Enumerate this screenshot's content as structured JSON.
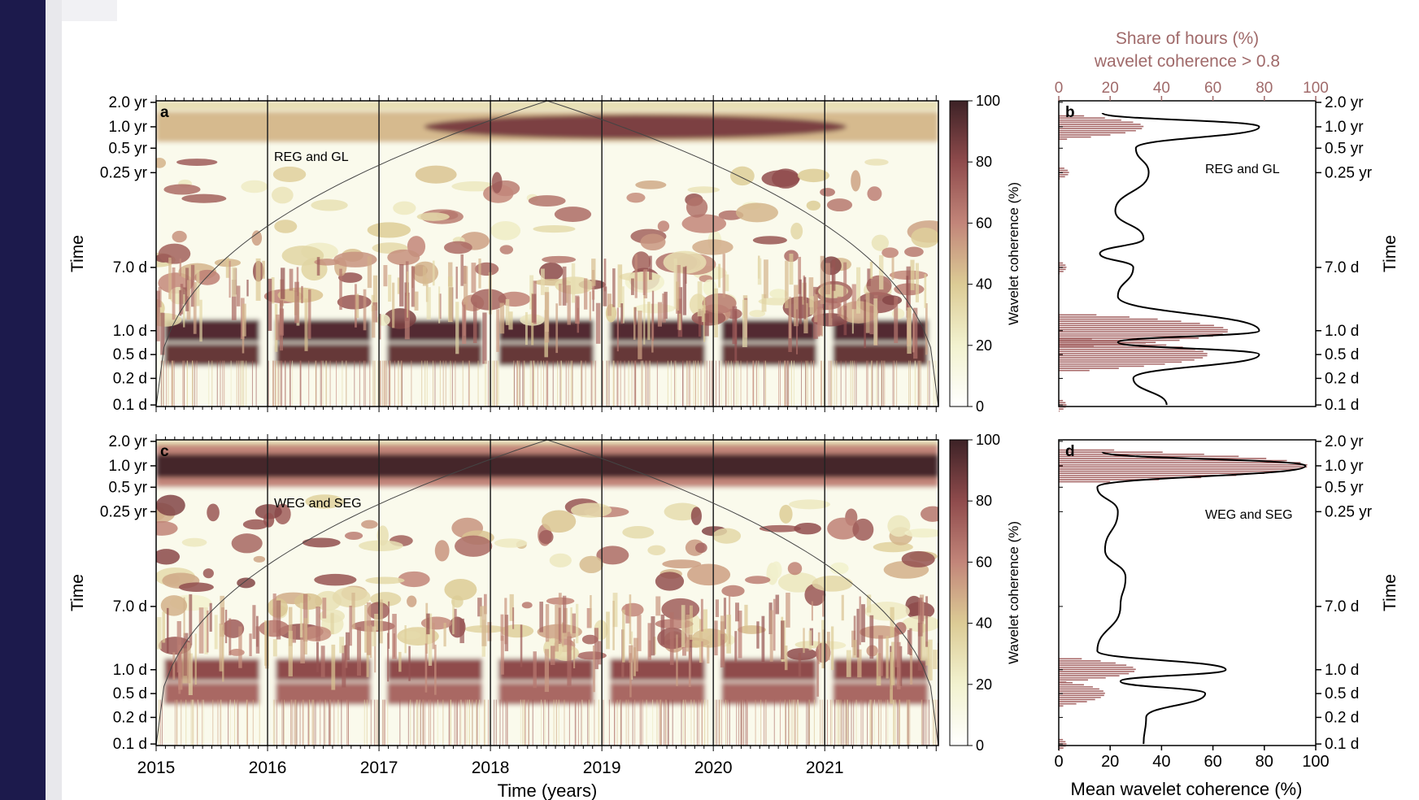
{
  "colors": {
    "page_background": "#ffffff",
    "left_strip": "#1c1a4c",
    "axis": "#000000",
    "secondary_axis": "#a06a6a",
    "bars": "#a86a6a",
    "colormap": [
      "#ffffff",
      "#f2f2cf",
      "#dccb95",
      "#c28579",
      "#8f4b4c",
      "#3d2226"
    ]
  },
  "chart_data": [
    {
      "panel": "a",
      "type": "heatmap",
      "annotation": "REG and GL",
      "xlabel": "Time (years)",
      "ylabel": "Time",
      "x_ticks": [
        "2015",
        "2016",
        "2017",
        "2018",
        "2019",
        "2020",
        "2021"
      ],
      "y_ticks": [
        "2.0 yr",
        "1.0 yr",
        "0.5 yr",
        "0.25 yr",
        "7.0 d",
        "1.0 d",
        "0.5 d",
        "0.2 d",
        "0.1 d"
      ],
      "y_scale": "log period",
      "colorbar": {
        "label": "Wavelet coherence (%)",
        "range": [
          0,
          100
        ],
        "ticks": [
          "0",
          "20",
          "40",
          "60",
          "80",
          "100"
        ]
      },
      "vertical_lines_at": [
        "2016",
        "2017",
        "2018",
        "2019",
        "2020",
        "2021"
      ],
      "cone_of_influence": true,
      "high_coherence_bands": [
        {
          "period": "1.0 yr",
          "coherence": 85,
          "extent": "strongest 2018–2020"
        },
        {
          "period": "1.0 d",
          "coherence": 95,
          "extent": "all years"
        },
        {
          "period": "0.5 d",
          "coherence": 90,
          "extent": "all years"
        }
      ]
    },
    {
      "panel": "b",
      "type": "bar",
      "orientation": "horizontal",
      "annotation": "REG and GL",
      "top_axis_label": "Share of hours (%) wavelet coherence > 0.8",
      "top_axis_label_lines": [
        "Share of hours (%)",
        "wavelet coherence > 0.8"
      ],
      "x_ticks": [
        "0",
        "20",
        "40",
        "60",
        "80",
        "100"
      ],
      "xlim": [
        0,
        100
      ],
      "right_axis_label": "Time",
      "y_ticks": [
        "2.0 yr",
        "1.0 yr",
        "0.5 yr",
        "0.25 yr",
        "7.0 d",
        "1.0 d",
        "0.5 d",
        "0.2 d",
        "0.1 d"
      ],
      "share_of_hours_profile": [
        {
          "period": "1.0 yr",
          "share": 33
        },
        {
          "period": "0.25 yr",
          "share": 4
        },
        {
          "period": "7.0 d",
          "share": 3
        },
        {
          "period": "1.0 d",
          "share": 66
        },
        {
          "period": "0.5 d",
          "share": 58
        },
        {
          "period": "0.1 d",
          "share": 3
        }
      ],
      "mean_coherence_profile": [
        {
          "period": "1.5 yr",
          "value": 17
        },
        {
          "period": "1.0 yr",
          "value": 78
        },
        {
          "period": "0.5 yr",
          "value": 30
        },
        {
          "period": "0.25 yr",
          "value": 35
        },
        {
          "period": "0.1 yr",
          "value": 22
        },
        {
          "period": "20 d",
          "value": 33
        },
        {
          "period": "10 d",
          "value": 16
        },
        {
          "period": "7.0 d",
          "value": 29
        },
        {
          "period": "3.0 d",
          "value": 23
        },
        {
          "period": "1.0 d",
          "value": 78
        },
        {
          "period": "0.7 d",
          "value": 23
        },
        {
          "period": "0.5 d",
          "value": 78
        },
        {
          "period": "0.2 d",
          "value": 29
        },
        {
          "period": "0.1 d",
          "value": 42
        }
      ]
    },
    {
      "panel": "c",
      "type": "heatmap",
      "annotation": "WEG and SEG",
      "xlabel": "Time (years)",
      "ylabel": "Time",
      "x_ticks": [
        "2015",
        "2016",
        "2017",
        "2018",
        "2019",
        "2020",
        "2021"
      ],
      "y_ticks": [
        "2.0 yr",
        "1.0 yr",
        "0.5 yr",
        "0.25 yr",
        "7.0 d",
        "1.0 d",
        "0.5 d",
        "0.2 d",
        "0.1 d"
      ],
      "y_scale": "log period",
      "colorbar": {
        "label": "Wavelet coherence (%)",
        "range": [
          0,
          100
        ],
        "ticks": [
          "0",
          "20",
          "40",
          "60",
          "80",
          "100"
        ]
      },
      "vertical_lines_at": [
        "2016",
        "2017",
        "2018",
        "2019",
        "2020",
        "2021"
      ],
      "cone_of_influence": true,
      "high_coherence_bands": [
        {
          "period": "1.0 yr",
          "coherence": 98,
          "extent": "all years"
        },
        {
          "period": "1.0 d",
          "coherence": 80,
          "extent": "all years"
        },
        {
          "period": "0.5 d",
          "coherence": 70,
          "extent": "all years"
        }
      ]
    },
    {
      "panel": "d",
      "type": "bar",
      "orientation": "horizontal",
      "annotation": "WEG and SEG",
      "bottom_axis_label": "Mean wavelet coherence (%)",
      "x_ticks": [
        "0",
        "20",
        "40",
        "60",
        "80",
        "100"
      ],
      "xlim": [
        0,
        100
      ],
      "right_axis_label": "Time",
      "y_ticks": [
        "2.0 yr",
        "1.0 yr",
        "0.5 yr",
        "0.25 yr",
        "7.0 d",
        "1.0 d",
        "0.5 d",
        "0.2 d",
        "0.1 d"
      ],
      "share_of_hours_profile": [
        {
          "period": "1.0 yr",
          "share": 97
        },
        {
          "period": "1.0 d",
          "share": 30
        },
        {
          "period": "0.5 d",
          "share": 18
        },
        {
          "period": "0.1 d",
          "share": 3
        }
      ],
      "mean_coherence_profile": [
        {
          "period": "1.5 yr",
          "value": 17
        },
        {
          "period": "1.0 yr",
          "value": 96
        },
        {
          "period": "0.5 yr",
          "value": 15
        },
        {
          "period": "0.25 yr",
          "value": 23
        },
        {
          "period": "0.1 yr",
          "value": 18
        },
        {
          "period": "20 d",
          "value": 26
        },
        {
          "period": "7.0 d",
          "value": 24
        },
        {
          "period": "2.0 d",
          "value": 15
        },
        {
          "period": "1.0 d",
          "value": 65
        },
        {
          "period": "0.7 d",
          "value": 24
        },
        {
          "period": "0.5 d",
          "value": 57
        },
        {
          "period": "0.2 d",
          "value": 34
        },
        {
          "period": "0.1 d",
          "value": 33
        }
      ]
    }
  ]
}
